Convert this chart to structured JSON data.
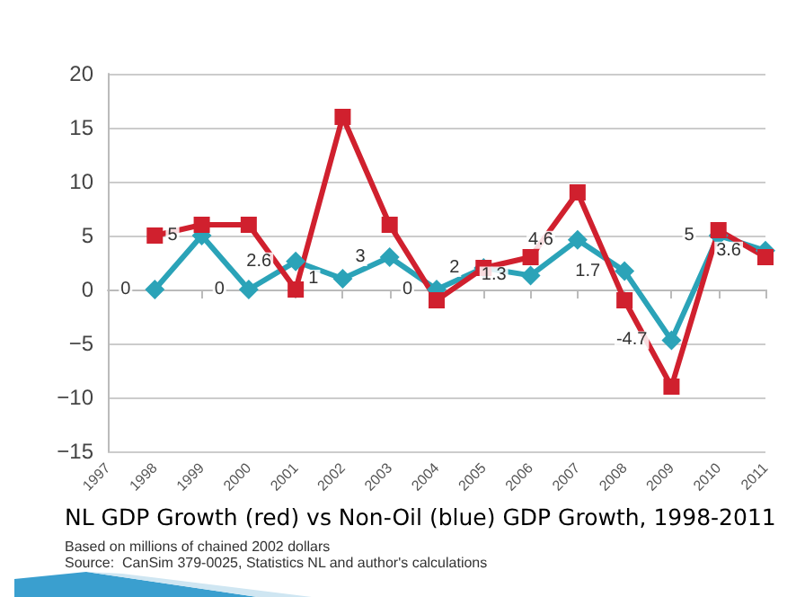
{
  "chart_data": {
    "type": "line",
    "title": "NL GDP Growth (red) vs Non-Oil (blue) GDP Growth, 1998-2011",
    "subtitle": "Based on millions of chained 2002 dollars",
    "annotations": [
      "Source:  CanSim 379-0025, Statistics NL and author's calculations"
    ],
    "categories": [
      "1997",
      "1998",
      "1999",
      "2000",
      "2001",
      "2002",
      "2003",
      "2004",
      "2005",
      "2006",
      "2007",
      "2008",
      "2009",
      "2010",
      "2011"
    ],
    "series": [
      {
        "color": "#d0202e",
        "marker": "square",
        "values": [
          null,
          5,
          6,
          6,
          0,
          16,
          6,
          -1,
          2,
          3,
          9,
          -1,
          -9,
          5.5,
          3
        ]
      },
      {
        "color": "#2ba3b8",
        "marker": "diamond",
        "values": [
          null,
          0,
          5,
          0,
          2.6,
          1,
          3,
          0,
          2,
          1.3,
          4.6,
          1.7,
          -4.7,
          5,
          3.6
        ],
        "value_labels": [
          null,
          "0",
          "5",
          "0",
          "2.6",
          "1",
          "3",
          "0",
          "2",
          "1.3",
          "4.6",
          "1.7",
          "-4.7",
          "5",
          "3.6"
        ]
      }
    ],
    "ylim": [
      -15,
      20
    ],
    "yticks": [
      -15,
      -10,
      -5,
      0,
      5,
      10,
      15,
      20
    ],
    "grid": "y",
    "line_style": "solid"
  }
}
